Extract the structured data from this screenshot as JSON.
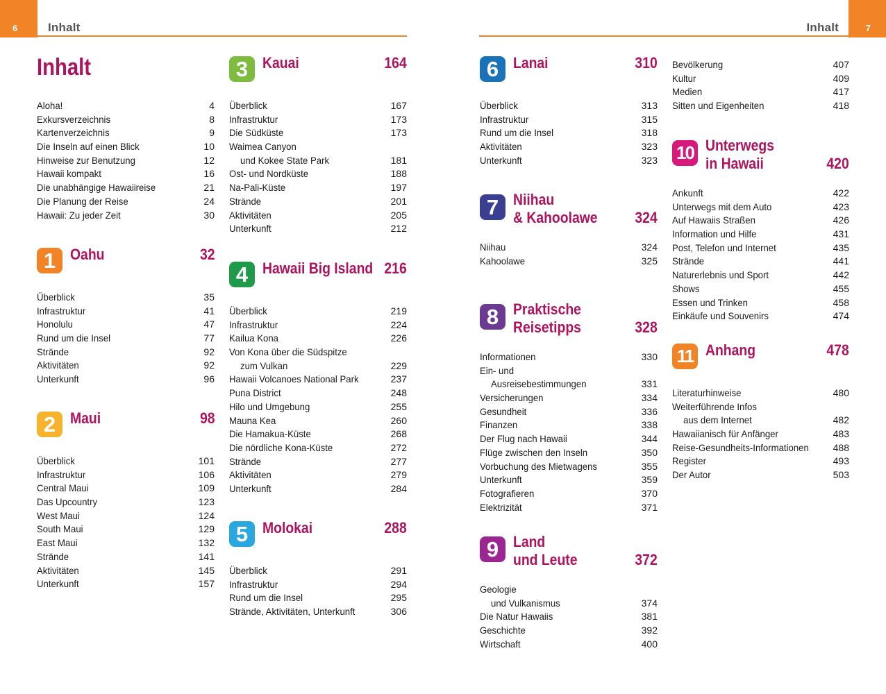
{
  "header": {
    "left_page_number": "6",
    "right_page_number": "7",
    "left_running_head": "Inhalt",
    "right_running_head": "Inhalt",
    "accent_color": "#f08427"
  },
  "toc_title": "Inhalt",
  "intro_entries": [
    {
      "label": "Aloha!",
      "page": "4"
    },
    {
      "label": "Exkursverzeichnis",
      "page": "8"
    },
    {
      "label": "Kartenverzeichnis",
      "page": "9"
    },
    {
      "label": "Die Inseln auf einen Blick",
      "page": "10"
    },
    {
      "label": "Hinweise zur Benutzung",
      "page": "12"
    },
    {
      "label": "Hawaii kompakt",
      "page": "16"
    },
    {
      "label": "Die unabhängige Hawaiireise",
      "page": "21"
    },
    {
      "label": "Die Planung der Reise",
      "page": "24"
    },
    {
      "label": "Hawaii: Zu jeder Zeit",
      "page": "30"
    }
  ],
  "sections": [
    {
      "number": "1",
      "title": "Oahu",
      "page": "32",
      "color": "#f08427",
      "entries": [
        {
          "label": "Überblick",
          "page": "35"
        },
        {
          "label": "Infrastruktur",
          "page": "41"
        },
        {
          "label": "Honolulu",
          "page": "47"
        },
        {
          "label": "Rund um die Insel",
          "page": "77"
        },
        {
          "label": "Strände",
          "page": "92"
        },
        {
          "label": "Aktivitäten",
          "page": "92"
        },
        {
          "label": "Unterkunft",
          "page": "96"
        }
      ]
    },
    {
      "number": "2",
      "title": "Maui",
      "page": "98",
      "color": "#f7b32b",
      "entries": [
        {
          "label": "Überblick",
          "page": "101"
        },
        {
          "label": "Infrastruktur",
          "page": "106"
        },
        {
          "label": "Central Maui",
          "page": "109"
        },
        {
          "label": "Das Upcountry",
          "page": "123"
        },
        {
          "label": "West Maui",
          "page": "124"
        },
        {
          "label": "South Maui",
          "page": "129"
        },
        {
          "label": "East Maui",
          "page": "132"
        },
        {
          "label": "Strände",
          "page": "141"
        },
        {
          "label": "Aktivitäten",
          "page": "145"
        },
        {
          "label": "Unterkunft",
          "page": "157"
        }
      ]
    },
    {
      "number": "3",
      "title": "Kauai",
      "page": "164",
      "color": "#7dbc3f",
      "entries": [
        {
          "label": "Überblick",
          "page": "167"
        },
        {
          "label": "Infrastruktur",
          "page": "173"
        },
        {
          "label": "Die Südküste",
          "page": "173"
        },
        {
          "label": "Waimea Canyon",
          "page": ""
        },
        {
          "label": "und Kokee State Park",
          "page": "181",
          "indent": true
        },
        {
          "label": "Ost- und Nordküste",
          "page": "188"
        },
        {
          "label": "Na-Pali-Küste",
          "page": "197"
        },
        {
          "label": "Strände",
          "page": "201"
        },
        {
          "label": "Aktivitäten",
          "page": "205"
        },
        {
          "label": "Unterkunft",
          "page": "212"
        }
      ]
    },
    {
      "number": "4",
      "title": "Hawaii Big Island",
      "page": "216",
      "color": "#1f9a4a",
      "entries": [
        {
          "label": "Überblick",
          "page": "219"
        },
        {
          "label": "Infrastruktur",
          "page": "224"
        },
        {
          "label": "Kailua Kona",
          "page": "226"
        },
        {
          "label": "Von Kona über die Südspitze",
          "page": ""
        },
        {
          "label": "zum Vulkan",
          "page": "229",
          "indent": true
        },
        {
          "label": "Hawaii Volcanoes National Park",
          "page": "237"
        },
        {
          "label": "Puna District",
          "page": "248"
        },
        {
          "label": "Hilo und Umgebung",
          "page": "255"
        },
        {
          "label": "Mauna Kea",
          "page": "260"
        },
        {
          "label": "Die Hamakua-Küste",
          "page": "268"
        },
        {
          "label": "Die nördliche Kona-Küste",
          "page": "272"
        },
        {
          "label": "Strände",
          "page": "277"
        },
        {
          "label": "Aktivitäten",
          "page": "279"
        },
        {
          "label": "Unterkunft",
          "page": "284"
        }
      ]
    },
    {
      "number": "5",
      "title": "Molokai",
      "page": "288",
      "color": "#2aa7df",
      "entries": [
        {
          "label": "Überblick",
          "page": "291"
        },
        {
          "label": "Infrastruktur",
          "page": "294"
        },
        {
          "label": "Rund um die Insel",
          "page": "295"
        },
        {
          "label": "Strände, Aktivitäten, Unterkunft",
          "page": "306"
        }
      ]
    },
    {
      "number": "6",
      "title": "Lanai",
      "page": "310",
      "color": "#1a72b8",
      "entries": [
        {
          "label": "Überblick",
          "page": "313"
        },
        {
          "label": "Infrastruktur",
          "page": "315"
        },
        {
          "label": "Rund um die Insel",
          "page": "318"
        },
        {
          "label": "Aktivitäten",
          "page": "323"
        },
        {
          "label": "Unterkunft",
          "page": "323"
        }
      ]
    },
    {
      "number": "7",
      "title": [
        "Niihau",
        "& Kahoolawe"
      ],
      "page": "324",
      "color": "#3a3f92",
      "entries": [
        {
          "label": "Niihau",
          "page": "324"
        },
        {
          "label": "Kahoolawe",
          "page": "325"
        }
      ]
    },
    {
      "number": "8",
      "title": [
        "Praktische",
        "Reisetipps"
      ],
      "page": "328",
      "color": "#6b3a93",
      "entries": [
        {
          "label": "Informationen",
          "page": "330"
        },
        {
          "label": "Ein- und",
          "page": ""
        },
        {
          "label": "Ausreisebestimmungen",
          "page": "331",
          "indent": true
        },
        {
          "label": "Versicherungen",
          "page": "334"
        },
        {
          "label": "Gesundheit",
          "page": "336"
        },
        {
          "label": "Finanzen",
          "page": "338"
        },
        {
          "label": "Der Flug nach Hawaii",
          "page": "344"
        },
        {
          "label": "Flüge zwischen den Inseln",
          "page": "350"
        },
        {
          "label": "Vorbuchung des Mietwagens",
          "page": "355"
        },
        {
          "label": "Unterkunft",
          "page": "359"
        },
        {
          "label": "Fotografieren",
          "page": "370"
        },
        {
          "label": "Elektrizität",
          "page": "371"
        }
      ]
    },
    {
      "number": "9",
      "title": [
        "Land",
        "und Leute"
      ],
      "page": "372",
      "color": "#9b2591",
      "entries": [
        {
          "label": "Geologie",
          "page": ""
        },
        {
          "label": "und Vulkanismus",
          "page": "374",
          "indent": true
        },
        {
          "label": "Die Natur Hawaiis",
          "page": "381"
        },
        {
          "label": "Geschichte",
          "page": "392"
        },
        {
          "label": "Wirtschaft",
          "page": "400"
        }
      ]
    },
    {
      "number": "9-continued",
      "title": "",
      "page": "",
      "color": "",
      "entries": [
        {
          "label": "Bevölkerung",
          "page": "407"
        },
        {
          "label": "Kultur",
          "page": "409"
        },
        {
          "label": "Medien",
          "page": "417"
        },
        {
          "label": "Sitten und Eigenheiten",
          "page": "418"
        }
      ]
    },
    {
      "number": "10",
      "title": [
        "Unterwegs",
        "in Hawaii"
      ],
      "page": "420",
      "color": "#d6197a",
      "entries": [
        {
          "label": "Ankunft",
          "page": "422"
        },
        {
          "label": "Unterwegs mit dem Auto",
          "page": "423"
        },
        {
          "label": "Auf Hawaiis Straßen",
          "page": "426"
        },
        {
          "label": "Information und Hilfe",
          "page": "431"
        },
        {
          "label": "Post, Telefon und Internet",
          "page": "435"
        },
        {
          "label": "Strände",
          "page": "441"
        },
        {
          "label": "Naturerlebnis und Sport",
          "page": "442"
        },
        {
          "label": "Shows",
          "page": "455"
        },
        {
          "label": "Essen und Trinken",
          "page": "458"
        },
        {
          "label": "Einkäufe und Souvenirs",
          "page": "474"
        }
      ]
    },
    {
      "number": "11",
      "title": "Anhang",
      "page": "478",
      "color": "#f08427",
      "entries": [
        {
          "label": "Literaturhinweise",
          "page": "480"
        },
        {
          "label": "Weiterführende Infos",
          "page": ""
        },
        {
          "label": "aus dem Internet",
          "page": "482",
          "indent": true
        },
        {
          "label": "Hawaiianisch für Anfänger",
          "page": "483"
        },
        {
          "label": "Reise-Gesundheits-Informationen",
          "page": "488"
        },
        {
          "label": "Register",
          "page": "493"
        },
        {
          "label": "Der Autor",
          "page": "503"
        }
      ]
    }
  ]
}
